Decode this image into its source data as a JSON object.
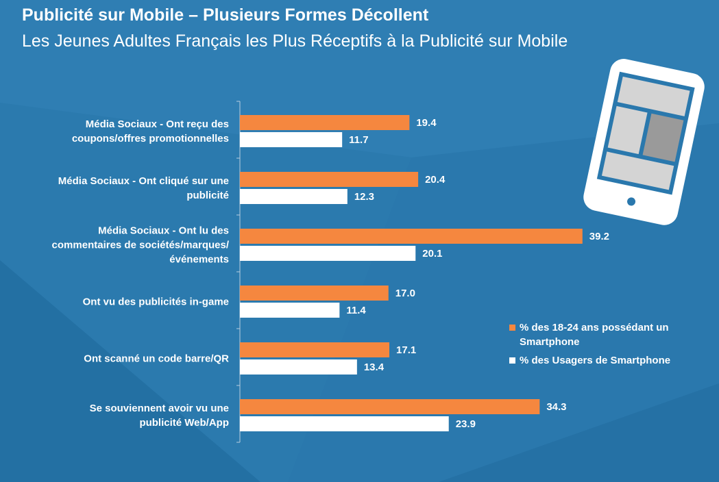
{
  "header": {
    "title": "Publicité sur Mobile – Plusieurs Formes Décollent",
    "subtitle": "Les Jeunes Adultes Français les Plus Réceptifs à la Publicité sur Mobile"
  },
  "colors": {
    "background": "#2a78ad",
    "series_a": "#f5873f",
    "series_b": "#ffffff",
    "phone_screen_dark": "#9a9a9a",
    "phone_screen_light": "#d4d4d4"
  },
  "icons": [
    "smartphone-icon"
  ],
  "chart_data": {
    "type": "bar",
    "orientation": "horizontal",
    "categories": [
      [
        "Média Sociaux - Ont reçu des",
        "coupons/offres promotionnelles"
      ],
      [
        "Média Sociaux - Ont cliqué sur une",
        "publicité"
      ],
      [
        "Média Sociaux - Ont lu des",
        "commentaires de sociétés/marques/",
        "événements"
      ],
      [
        "Ont vu des publicités in-game"
      ],
      [
        "Ont scanné un code barre/QR"
      ],
      [
        "Se souviennent avoir vu une",
        "publicité Web/App"
      ]
    ],
    "series": [
      {
        "name": "% des 18-24 ans possédant un Smartphone",
        "color": "#f5873f",
        "values": [
          19.4,
          20.4,
          39.2,
          17.0,
          17.1,
          34.3
        ],
        "labels": [
          "19.4",
          "20.4",
          "39.2",
          "17.0",
          "17.1",
          "34.3"
        ]
      },
      {
        "name": "% des Usagers de Smartphone",
        "color": "#ffffff",
        "values": [
          11.7,
          12.3,
          20.1,
          11.4,
          13.4,
          23.9
        ],
        "labels": [
          "11.7",
          "12.3",
          "20.1",
          "11.4",
          "13.4",
          "23.9"
        ]
      }
    ],
    "xlim": [
      0,
      40
    ],
    "grid": false,
    "legend": "right"
  }
}
